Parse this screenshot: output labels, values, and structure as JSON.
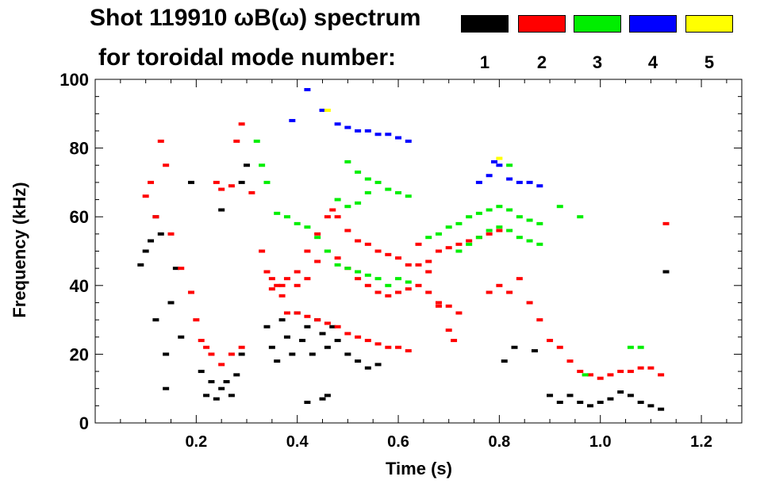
{
  "title_line1": "Shot 119910 ωB(ω) spectrum",
  "title_line2": "for toroidal mode number:",
  "legend": [
    {
      "mode": "1",
      "color": "#000000"
    },
    {
      "mode": "2",
      "color": "#ff0000"
    },
    {
      "mode": "3",
      "color": "#00ee00"
    },
    {
      "mode": "4",
      "color": "#0000ff"
    },
    {
      "mode": "5",
      "color": "#ffff00"
    }
  ],
  "chart_data": {
    "type": "scatter",
    "title": "Shot 119910 ωB(ω) spectrum",
    "xlabel": "Time (s)",
    "ylabel": "Frequency (kHz)",
    "xlim": [
      0.0,
      1.28
    ],
    "ylim": [
      0,
      100
    ],
    "xticks": [
      0.2,
      0.4,
      0.6,
      0.8,
      1.0,
      1.2
    ],
    "xtick_labels": [
      "0.2",
      "0.4",
      "0.6",
      "0.8",
      "1.0",
      "1.2"
    ],
    "yticks": [
      0,
      20,
      40,
      60,
      80,
      100
    ],
    "ytick_labels": [
      "0",
      "20",
      "40",
      "60",
      "80",
      "100"
    ],
    "series": [
      {
        "name": "n=1",
        "color": "#000000",
        "points": [
          [
            0.09,
            46
          ],
          [
            0.1,
            50
          ],
          [
            0.11,
            53
          ],
          [
            0.12,
            60
          ],
          [
            0.12,
            30
          ],
          [
            0.13,
            55
          ],
          [
            0.14,
            20
          ],
          [
            0.14,
            10
          ],
          [
            0.15,
            35
          ],
          [
            0.16,
            45
          ],
          [
            0.17,
            25
          ],
          [
            0.19,
            70
          ],
          [
            0.21,
            15
          ],
          [
            0.22,
            8
          ],
          [
            0.23,
            12
          ],
          [
            0.24,
            7
          ],
          [
            0.25,
            10
          ],
          [
            0.26,
            12
          ],
          [
            0.27,
            8
          ],
          [
            0.28,
            14
          ],
          [
            0.29,
            20
          ],
          [
            0.25,
            62
          ],
          [
            0.29,
            70
          ],
          [
            0.3,
            75
          ],
          [
            0.34,
            28
          ],
          [
            0.35,
            22
          ],
          [
            0.36,
            18
          ],
          [
            0.37,
            30
          ],
          [
            0.38,
            25
          ],
          [
            0.39,
            20
          ],
          [
            0.4,
            32
          ],
          [
            0.41,
            24
          ],
          [
            0.42,
            28
          ],
          [
            0.43,
            20
          ],
          [
            0.44,
            30
          ],
          [
            0.45,
            26
          ],
          [
            0.46,
            22
          ],
          [
            0.47,
            28
          ],
          [
            0.48,
            24
          ],
          [
            0.5,
            20
          ],
          [
            0.52,
            18
          ],
          [
            0.54,
            16
          ],
          [
            0.56,
            17
          ],
          [
            0.42,
            6
          ],
          [
            0.45,
            7
          ],
          [
            0.46,
            8
          ],
          [
            0.81,
            18
          ],
          [
            0.83,
            22
          ],
          [
            0.87,
            21
          ],
          [
            0.9,
            8
          ],
          [
            0.92,
            6
          ],
          [
            0.94,
            8
          ],
          [
            0.96,
            6
          ],
          [
            0.98,
            5
          ],
          [
            1.0,
            6
          ],
          [
            1.02,
            7
          ],
          [
            1.04,
            9
          ],
          [
            1.06,
            8
          ],
          [
            1.08,
            6
          ],
          [
            1.1,
            5
          ],
          [
            1.12,
            4
          ],
          [
            1.13,
            44
          ]
        ]
      },
      {
        "name": "n=2",
        "color": "#ff0000",
        "points": [
          [
            0.1,
            66
          ],
          [
            0.11,
            70
          ],
          [
            0.12,
            60
          ],
          [
            0.13,
            82
          ],
          [
            0.14,
            75
          ],
          [
            0.15,
            55
          ],
          [
            0.17,
            45
          ],
          [
            0.19,
            38
          ],
          [
            0.2,
            30
          ],
          [
            0.21,
            24
          ],
          [
            0.22,
            22
          ],
          [
            0.23,
            20
          ],
          [
            0.25,
            17
          ],
          [
            0.27,
            20
          ],
          [
            0.29,
            22
          ],
          [
            0.24,
            70
          ],
          [
            0.25,
            68
          ],
          [
            0.27,
            69
          ],
          [
            0.28,
            82
          ],
          [
            0.29,
            87
          ],
          [
            0.31,
            67
          ],
          [
            0.33,
            50
          ],
          [
            0.34,
            44
          ],
          [
            0.35,
            42
          ],
          [
            0.36,
            40
          ],
          [
            0.37,
            40
          ],
          [
            0.38,
            42
          ],
          [
            0.4,
            44
          ],
          [
            0.42,
            50
          ],
          [
            0.44,
            55
          ],
          [
            0.46,
            60
          ],
          [
            0.47,
            62
          ],
          [
            0.48,
            60
          ],
          [
            0.5,
            56
          ],
          [
            0.52,
            53
          ],
          [
            0.54,
            52
          ],
          [
            0.56,
            50
          ],
          [
            0.58,
            49
          ],
          [
            0.6,
            48
          ],
          [
            0.62,
            46
          ],
          [
            0.64,
            46
          ],
          [
            0.66,
            47
          ],
          [
            0.68,
            50
          ],
          [
            0.7,
            51
          ],
          [
            0.72,
            52
          ],
          [
            0.74,
            53
          ],
          [
            0.76,
            54
          ],
          [
            0.78,
            55
          ],
          [
            0.8,
            56
          ],
          [
            0.35,
            39
          ],
          [
            0.37,
            37
          ],
          [
            0.4,
            40
          ],
          [
            0.42,
            42
          ],
          [
            0.44,
            47
          ],
          [
            0.46,
            50
          ],
          [
            0.48,
            48
          ],
          [
            0.5,
            45
          ],
          [
            0.52,
            42
          ],
          [
            0.54,
            40
          ],
          [
            0.56,
            38
          ],
          [
            0.58,
            37
          ],
          [
            0.6,
            38
          ],
          [
            0.62,
            39
          ],
          [
            0.64,
            40
          ],
          [
            0.66,
            38
          ],
          [
            0.68,
            35
          ],
          [
            0.7,
            34
          ],
          [
            0.72,
            32
          ],
          [
            0.38,
            32
          ],
          [
            0.4,
            32
          ],
          [
            0.42,
            31
          ],
          [
            0.44,
            30
          ],
          [
            0.46,
            29
          ],
          [
            0.48,
            28
          ],
          [
            0.5,
            26
          ],
          [
            0.52,
            25
          ],
          [
            0.54,
            24
          ],
          [
            0.56,
            23
          ],
          [
            0.58,
            22
          ],
          [
            0.6,
            22
          ],
          [
            0.62,
            21
          ],
          [
            0.64,
            52
          ],
          [
            0.66,
            44
          ],
          [
            0.68,
            34
          ],
          [
            0.7,
            27
          ],
          [
            0.71,
            24
          ],
          [
            0.78,
            38
          ],
          [
            0.8,
            40
          ],
          [
            0.82,
            38
          ],
          [
            0.84,
            42
          ],
          [
            0.86,
            35
          ],
          [
            0.88,
            30
          ],
          [
            0.9,
            24
          ],
          [
            0.92,
            22
          ],
          [
            0.94,
            18
          ],
          [
            0.96,
            15
          ],
          [
            0.98,
            14
          ],
          [
            1.0,
            13
          ],
          [
            1.02,
            14
          ],
          [
            1.04,
            15
          ],
          [
            1.06,
            15
          ],
          [
            1.08,
            16
          ],
          [
            1.1,
            16
          ],
          [
            1.12,
            14
          ],
          [
            1.13,
            58
          ]
        ]
      },
      {
        "name": "n=3",
        "color": "#00ee00",
        "points": [
          [
            0.32,
            82
          ],
          [
            0.33,
            75
          ],
          [
            0.34,
            70
          ],
          [
            0.36,
            61
          ],
          [
            0.38,
            60
          ],
          [
            0.4,
            58
          ],
          [
            0.42,
            57
          ],
          [
            0.44,
            54
          ],
          [
            0.46,
            50
          ],
          [
            0.48,
            46
          ],
          [
            0.5,
            45
          ],
          [
            0.52,
            44
          ],
          [
            0.54,
            43
          ],
          [
            0.56,
            42
          ],
          [
            0.58,
            40
          ],
          [
            0.6,
            42
          ],
          [
            0.62,
            41
          ],
          [
            0.48,
            65
          ],
          [
            0.5,
            63
          ],
          [
            0.52,
            64
          ],
          [
            0.54,
            67
          ],
          [
            0.5,
            76
          ],
          [
            0.52,
            73
          ],
          [
            0.54,
            71
          ],
          [
            0.56,
            70
          ],
          [
            0.58,
            68
          ],
          [
            0.6,
            67
          ],
          [
            0.62,
            66
          ],
          [
            0.66,
            54
          ],
          [
            0.68,
            55
          ],
          [
            0.7,
            57
          ],
          [
            0.72,
            58
          ],
          [
            0.74,
            60
          ],
          [
            0.76,
            61
          ],
          [
            0.78,
            62
          ],
          [
            0.8,
            63
          ],
          [
            0.82,
            62
          ],
          [
            0.84,
            60
          ],
          [
            0.86,
            59
          ],
          [
            0.88,
            58
          ],
          [
            0.72,
            50
          ],
          [
            0.74,
            52
          ],
          [
            0.76,
            54
          ],
          [
            0.78,
            56
          ],
          [
            0.8,
            57
          ],
          [
            0.82,
            56
          ],
          [
            0.84,
            54
          ],
          [
            0.86,
            53
          ],
          [
            0.88,
            52
          ],
          [
            0.82,
            75
          ],
          [
            0.92,
            63
          ],
          [
            0.96,
            60
          ],
          [
            1.06,
            22
          ],
          [
            1.08,
            22
          ],
          [
            0.97,
            14
          ]
        ]
      },
      {
        "name": "n=4",
        "color": "#0000ff",
        "points": [
          [
            0.39,
            88
          ],
          [
            0.42,
            97
          ],
          [
            0.45,
            91
          ],
          [
            0.48,
            87
          ],
          [
            0.5,
            86
          ],
          [
            0.52,
            85
          ],
          [
            0.54,
            85
          ],
          [
            0.56,
            84
          ],
          [
            0.58,
            84
          ],
          [
            0.6,
            83
          ],
          [
            0.62,
            82
          ],
          [
            0.76,
            70
          ],
          [
            0.78,
            72
          ],
          [
            0.79,
            76
          ],
          [
            0.8,
            75
          ],
          [
            0.82,
            71
          ],
          [
            0.84,
            70
          ],
          [
            0.86,
            70
          ],
          [
            0.88,
            69
          ]
        ]
      },
      {
        "name": "n=5",
        "color": "#ffff00",
        "points": [
          [
            0.46,
            91
          ],
          [
            0.8,
            77
          ]
        ]
      }
    ]
  }
}
